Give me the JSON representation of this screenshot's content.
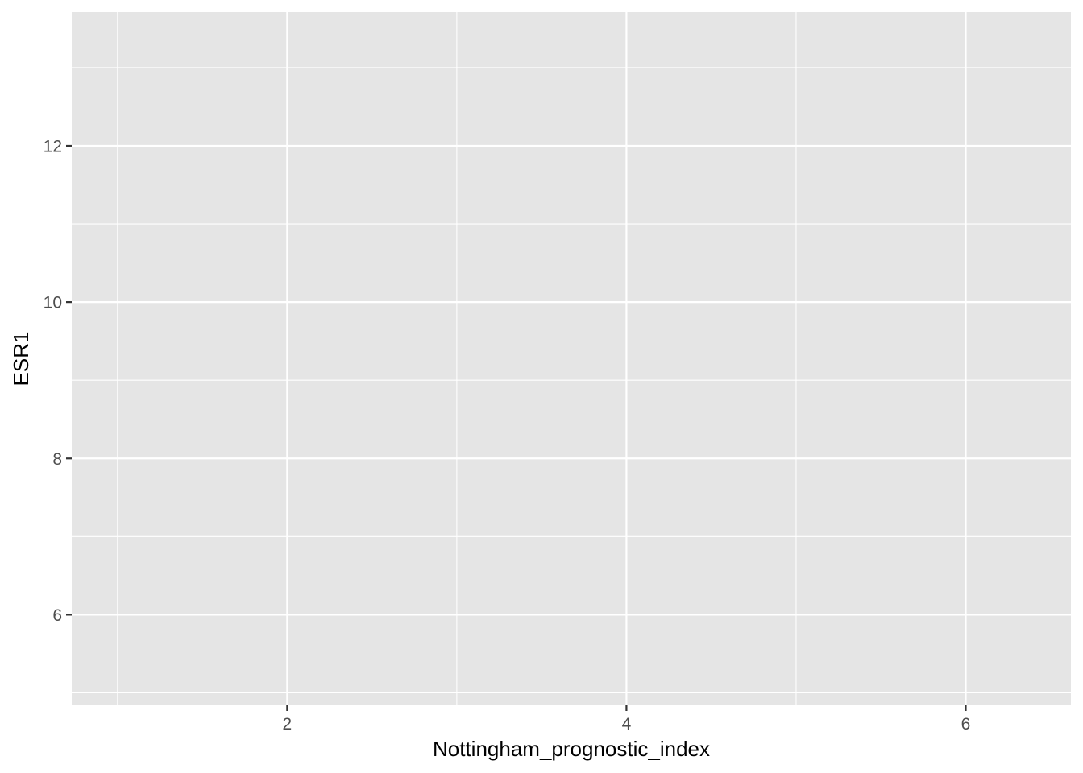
{
  "chart_data": {
    "type": "scatter",
    "title": "",
    "xlabel": "Nottingham_prognostic_index",
    "ylabel": "ESR1",
    "xlim": [
      0.73,
      6.62
    ],
    "ylim": [
      4.84,
      13.71
    ],
    "x_major_ticks": [
      2,
      4,
      6
    ],
    "x_minor_ticks": [
      1,
      3,
      5
    ],
    "y_major_ticks": [
      6,
      8,
      10,
      12
    ],
    "y_minor_ticks": [
      5,
      7,
      9,
      11,
      13
    ],
    "x_tick_labels": [
      "2",
      "4",
      "6"
    ],
    "y_tick_labels": [
      "6",
      "8",
      "10",
      "12"
    ],
    "grid": true,
    "panel_background": "#e5e5e5",
    "grid_color": "#ffffff",
    "tick_color": "#333333",
    "series": [
      {
        "x": [],
        "y": []
      }
    ]
  }
}
